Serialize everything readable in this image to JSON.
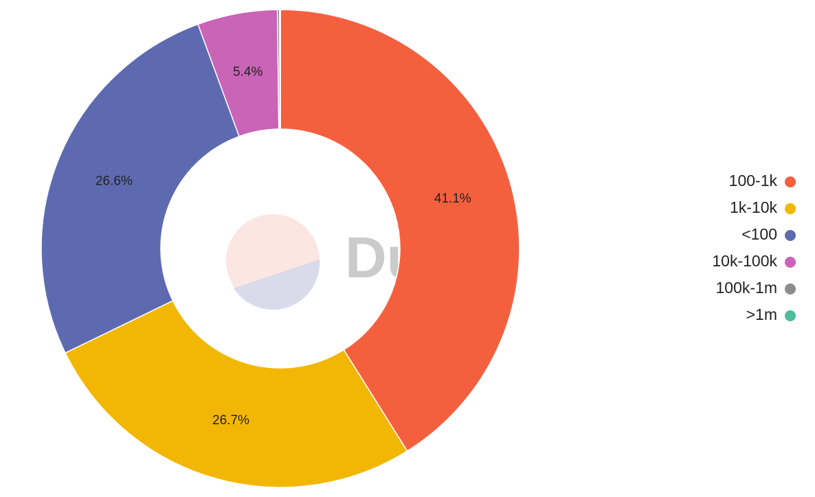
{
  "chart_data": {
    "type": "donut",
    "watermark": "Dune",
    "categories": [
      "100-1k",
      "1k-10k",
      "<100",
      "10k-100k",
      "100k-1m",
      ">1m"
    ],
    "values": [
      41.1,
      26.7,
      26.6,
      5.4,
      0.15,
      0.05
    ],
    "value_labels": [
      "41.1%",
      "26.7%",
      "26.6%",
      "5.4%",
      null,
      null
    ],
    "colors": [
      "#f4603e",
      "#f2b705",
      "#5e6ab0",
      "#c964b6",
      "#8c8c8c",
      "#4dbd9a"
    ],
    "legend": "right"
  }
}
